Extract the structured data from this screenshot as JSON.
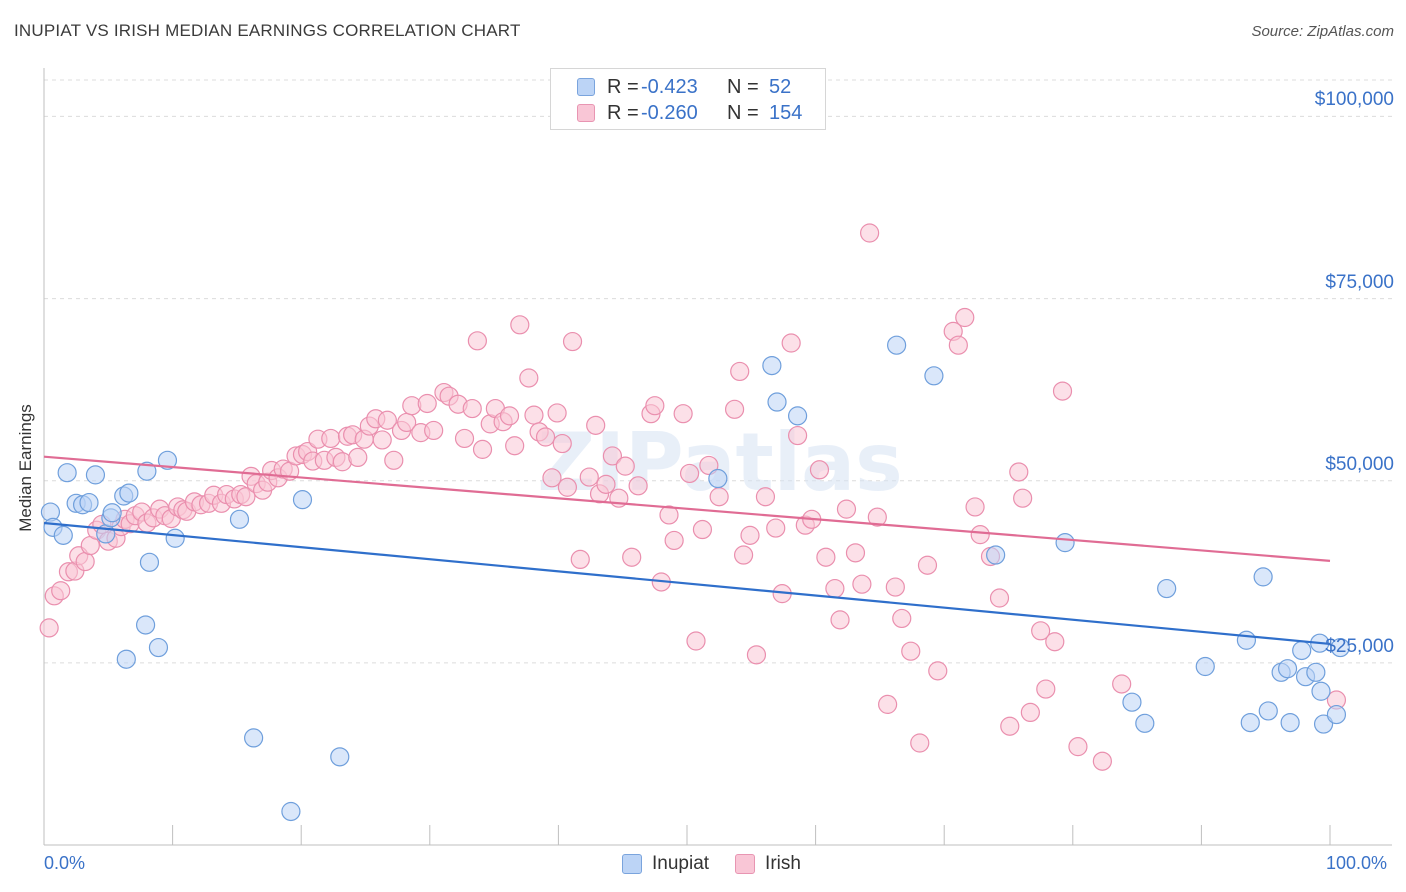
{
  "header": {
    "title": "INUPIAT VS IRISH MEDIAN EARNINGS CORRELATION CHART",
    "source": "Source: ZipAtlas.com"
  },
  "legend_top": {
    "rows": [
      {
        "r_label": "R =",
        "r_value": "-0.423",
        "n_label": "N =",
        "n_value": "52"
      },
      {
        "r_label": "R =",
        "r_value": "-0.260",
        "n_label": "N =",
        "n_value": "154"
      }
    ]
  },
  "legend_bottom": {
    "items": [
      "Inupiat",
      "Irish"
    ]
  },
  "colors": {
    "inupiat_fill": "#bcd4f6",
    "inupiat_stroke": "#6f9fdc",
    "inupiat_line": "#2f6fcb",
    "irish_fill": "#f9c6d6",
    "irish_stroke": "#ea8fae",
    "irish_line": "#e06c94",
    "tick_text": "#3a72c8",
    "grid": "#dcdcdc"
  },
  "chart_data": {
    "type": "scatter",
    "title": "INUPIAT VS IRISH MEDIAN EARNINGS CORRELATION CHART",
    "xlabel": "",
    "ylabel": "Median Earnings",
    "x_tick_labels": [
      "0.0%",
      "100.0%"
    ],
    "y_tick_labels": [
      "$25,000",
      "$50,000",
      "$75,000",
      "$100,000"
    ],
    "y_ticks": [
      25000,
      50000,
      75000,
      100000
    ],
    "xlim": [
      0,
      100
    ],
    "ylim": [
      0,
      105000
    ],
    "grid": true,
    "legend_position": "top-center",
    "watermark": "ZIPatlas",
    "series": [
      {
        "name": "Inupiat",
        "r": -0.423,
        "n": 52,
        "trend": {
          "x": [
            0,
            100
          ],
          "y": [
            44200,
            27600
          ]
        },
        "points": [
          [
            0.5,
            45700
          ],
          [
            0.7,
            43600
          ],
          [
            1.5,
            42500
          ],
          [
            1.8,
            51100
          ],
          [
            2.5,
            46900
          ],
          [
            3,
            46700
          ],
          [
            3.5,
            47000
          ],
          [
            4,
            50800
          ],
          [
            4.8,
            42700
          ],
          [
            5.2,
            44900
          ],
          [
            5.3,
            45600
          ],
          [
            6.2,
            47900
          ],
          [
            6.4,
            25500
          ],
          [
            6.6,
            48300
          ],
          [
            8,
            51300
          ],
          [
            7.9,
            30200
          ],
          [
            8.2,
            38800
          ],
          [
            8.9,
            27100
          ],
          [
            9.6,
            52800
          ],
          [
            10.2,
            42100
          ],
          [
            15.2,
            44700
          ],
          [
            16.3,
            14700
          ],
          [
            19.2,
            4600
          ],
          [
            20.1,
            47400
          ],
          [
            23,
            12100
          ],
          [
            52.4,
            50300
          ],
          [
            56.6,
            65800
          ],
          [
            57,
            60800
          ],
          [
            58.6,
            58900
          ],
          [
            66.3,
            68600
          ],
          [
            69.2,
            64400
          ],
          [
            74,
            39800
          ],
          [
            79.4,
            41500
          ],
          [
            84.6,
            19600
          ],
          [
            85.6,
            16700
          ],
          [
            87.3,
            35200
          ],
          [
            90.3,
            24500
          ],
          [
            93.5,
            28100
          ],
          [
            93.8,
            16800
          ],
          [
            94.8,
            36800
          ],
          [
            95.2,
            18400
          ],
          [
            96.2,
            23700
          ],
          [
            96.7,
            24200
          ],
          [
            96.9,
            16800
          ],
          [
            97.8,
            26700
          ],
          [
            98.1,
            23100
          ],
          [
            98.9,
            23700
          ],
          [
            99.2,
            27700
          ],
          [
            99.3,
            21100
          ],
          [
            99.5,
            16600
          ],
          [
            100.5,
            17900
          ],
          [
            100.8,
            27100
          ]
        ]
      },
      {
        "name": "Irish",
        "r": -0.26,
        "n": 154,
        "trend": {
          "x": [
            0,
            100
          ],
          "y": [
            53300,
            39000
          ]
        },
        "points": [
          [
            0.4,
            29800
          ],
          [
            0.8,
            34200
          ],
          [
            1.3,
            34900
          ],
          [
            1.9,
            37500
          ],
          [
            2.4,
            37600
          ],
          [
            2.7,
            39700
          ],
          [
            3.2,
            38900
          ],
          [
            3.6,
            41100
          ],
          [
            4.1,
            43200
          ],
          [
            4.5,
            44000
          ],
          [
            5,
            41700
          ],
          [
            5.6,
            42100
          ],
          [
            6,
            43700
          ],
          [
            6.3,
            44700
          ],
          [
            6.7,
            44100
          ],
          [
            7.1,
            45200
          ],
          [
            7.6,
            45700
          ],
          [
            8,
            44200
          ],
          [
            8.5,
            44900
          ],
          [
            9,
            46100
          ],
          [
            9.4,
            45200
          ],
          [
            9.9,
            44800
          ],
          [
            10.4,
            46400
          ],
          [
            10.8,
            46000
          ],
          [
            11.1,
            45800
          ],
          [
            11.7,
            47100
          ],
          [
            12.2,
            46700
          ],
          [
            12.8,
            46900
          ],
          [
            13.2,
            48000
          ],
          [
            13.8,
            46900
          ],
          [
            14.2,
            48100
          ],
          [
            14.8,
            47500
          ],
          [
            15.3,
            48100
          ],
          [
            15.7,
            47800
          ],
          [
            16.1,
            50600
          ],
          [
            16.5,
            49600
          ],
          [
            17,
            48700
          ],
          [
            17.4,
            49800
          ],
          [
            17.7,
            51400
          ],
          [
            18.2,
            50400
          ],
          [
            18.6,
            51600
          ],
          [
            19.1,
            51300
          ],
          [
            19.6,
            53400
          ],
          [
            20.1,
            53600
          ],
          [
            20.5,
            54000
          ],
          [
            20.9,
            52700
          ],
          [
            21.3,
            55700
          ],
          [
            21.8,
            52800
          ],
          [
            22.3,
            55800
          ],
          [
            22.7,
            53200
          ],
          [
            23.2,
            52600
          ],
          [
            23.6,
            56100
          ],
          [
            24,
            56300
          ],
          [
            24.4,
            53200
          ],
          [
            24.9,
            55700
          ],
          [
            25.3,
            57500
          ],
          [
            25.8,
            58500
          ],
          [
            26.3,
            55600
          ],
          [
            26.7,
            58300
          ],
          [
            27.2,
            52800
          ],
          [
            27.8,
            56900
          ],
          [
            28.2,
            58000
          ],
          [
            28.6,
            60300
          ],
          [
            29.3,
            56600
          ],
          [
            29.8,
            60600
          ],
          [
            30.3,
            56900
          ],
          [
            31.1,
            62100
          ],
          [
            31.5,
            61600
          ],
          [
            32.2,
            60500
          ],
          [
            32.7,
            55800
          ],
          [
            33.3,
            59900
          ],
          [
            33.7,
            69200
          ],
          [
            34.1,
            54300
          ],
          [
            34.7,
            57800
          ],
          [
            35.1,
            59900
          ],
          [
            35.7,
            58100
          ],
          [
            36.2,
            58900
          ],
          [
            36.6,
            54800
          ],
          [
            37,
            71400
          ],
          [
            37.7,
            64100
          ],
          [
            38.1,
            59000
          ],
          [
            38.5,
            56700
          ],
          [
            39,
            56000
          ],
          [
            39.5,
            50400
          ],
          [
            39.9,
            59300
          ],
          [
            40.3,
            55100
          ],
          [
            40.7,
            49100
          ],
          [
            41.1,
            69100
          ],
          [
            41.7,
            39200
          ],
          [
            42.4,
            50500
          ],
          [
            42.9,
            57600
          ],
          [
            43.2,
            48200
          ],
          [
            43.7,
            49500
          ],
          [
            44.2,
            53400
          ],
          [
            44.7,
            47600
          ],
          [
            45.2,
            52000
          ],
          [
            45.7,
            39500
          ],
          [
            46.2,
            49300
          ],
          [
            47.2,
            59200
          ],
          [
            47.5,
            60300
          ],
          [
            48,
            36100
          ],
          [
            48.6,
            45300
          ],
          [
            49,
            41800
          ],
          [
            49.7,
            59200
          ],
          [
            50.2,
            51000
          ],
          [
            50.7,
            28000
          ],
          [
            51.2,
            43300
          ],
          [
            51.7,
            52100
          ],
          [
            52.5,
            47800
          ],
          [
            53.7,
            59800
          ],
          [
            54.1,
            65000
          ],
          [
            54.4,
            39800
          ],
          [
            54.9,
            42500
          ],
          [
            55.4,
            26100
          ],
          [
            56.1,
            47800
          ],
          [
            56.9,
            43500
          ],
          [
            57.4,
            34500
          ],
          [
            58.1,
            68900
          ],
          [
            58.6,
            56200
          ],
          [
            59.2,
            43900
          ],
          [
            59.7,
            44700
          ],
          [
            60.3,
            51500
          ],
          [
            60.8,
            39500
          ],
          [
            61.5,
            35200
          ],
          [
            61.9,
            30900
          ],
          [
            62.4,
            46100
          ],
          [
            63.1,
            40100
          ],
          [
            63.6,
            35800
          ],
          [
            64.2,
            84000
          ],
          [
            64.8,
            45000
          ],
          [
            65.6,
            19300
          ],
          [
            66.2,
            35400
          ],
          [
            66.7,
            31100
          ],
          [
            67.4,
            26600
          ],
          [
            68.1,
            14000
          ],
          [
            68.7,
            38400
          ],
          [
            69.5,
            23900
          ],
          [
            70.7,
            70500
          ],
          [
            71.1,
            68600
          ],
          [
            71.6,
            72400
          ],
          [
            72.4,
            46400
          ],
          [
            72.8,
            42600
          ],
          [
            73.6,
            39600
          ],
          [
            74.3,
            33900
          ],
          [
            75.1,
            16300
          ],
          [
            75.8,
            51200
          ],
          [
            76.1,
            47600
          ],
          [
            76.7,
            18200
          ],
          [
            77.5,
            29400
          ],
          [
            77.9,
            21400
          ],
          [
            78.6,
            27900
          ],
          [
            79.2,
            62300
          ],
          [
            80.4,
            13500
          ],
          [
            82.3,
            11500
          ],
          [
            83.8,
            22100
          ],
          [
            100.5,
            19900
          ]
        ]
      }
    ]
  }
}
